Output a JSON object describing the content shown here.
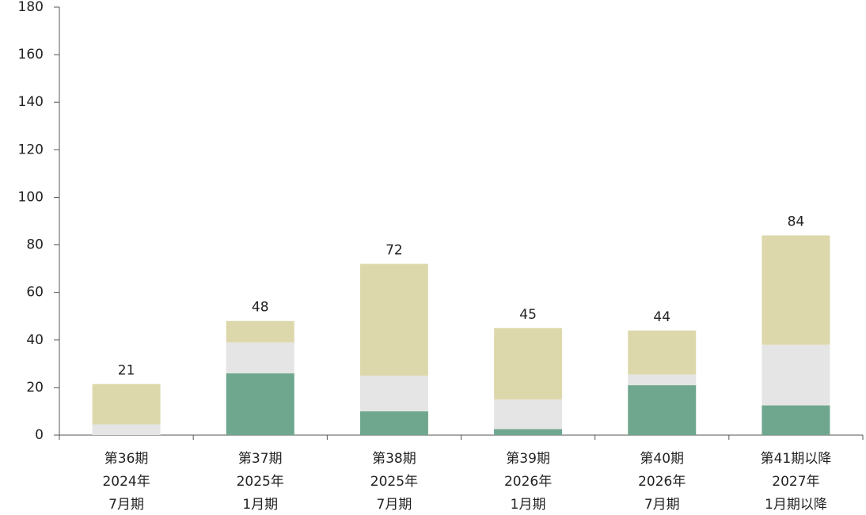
{
  "chart_data": {
    "type": "stacked_bar",
    "categories": [
      [
        "第36期",
        "2024年",
        "7月期"
      ],
      [
        "第37期",
        "2025年",
        "1月期"
      ],
      [
        "第38期",
        "2025年",
        "7月期"
      ],
      [
        "第39期",
        "2026年",
        "1月期"
      ],
      [
        "第40期",
        "2026年",
        "7月期"
      ],
      [
        "第41期以降",
        "2027年",
        "1月期以降"
      ]
    ],
    "series": [
      {
        "color": "#6fa78e",
        "values": [
          0,
          26,
          10,
          2.5,
          21,
          12.5
        ]
      },
      {
        "color": "#e5e5e5",
        "values": [
          4.5,
          13,
          15,
          12.5,
          4.5,
          25.5
        ]
      },
      {
        "color": "#ddd8ab",
        "values": [
          17,
          9,
          47,
          30,
          18.5,
          46
        ]
      }
    ],
    "totals": [
      21,
      48,
      72,
      45,
      44,
      84
    ],
    "ylim": [
      0,
      180
    ],
    "yticks": [
      0,
      20,
      40,
      60,
      80,
      100,
      120,
      140,
      160,
      180
    ]
  }
}
